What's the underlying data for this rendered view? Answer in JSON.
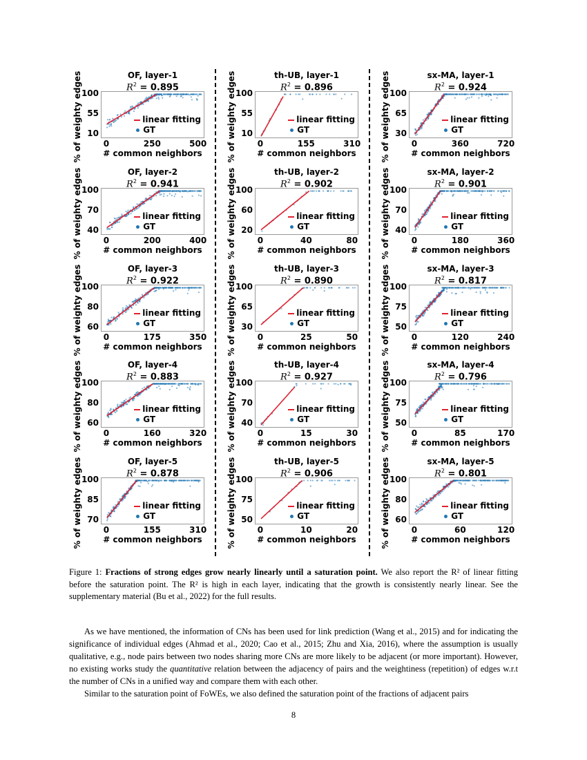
{
  "figure": {
    "ylabel": "% of weighty edges",
    "xlabel": "# common neighbors",
    "legend": {
      "fit": "linear fitting",
      "gt": "GT"
    },
    "r2_prefix": "= ",
    "colors": {
      "fit": "#e0202e",
      "gt": "#1f77b4"
    }
  },
  "chart_data": [
    {
      "type": "scatter",
      "title": "OF, layer-1",
      "r2": "0.895",
      "yticks": [
        10,
        55,
        100
      ],
      "xticks": [
        0,
        250,
        500
      ],
      "fit_line": [
        [
          0,
          33
        ],
        [
          270,
          100
        ]
      ]
    },
    {
      "type": "scatter",
      "title": "th-UB, layer-1",
      "r2": "0.896",
      "yticks": [
        10,
        55,
        100
      ],
      "xticks": [
        0,
        155,
        310
      ],
      "fit_line": [
        [
          0,
          5
        ],
        [
          75,
          95
        ]
      ]
    },
    {
      "type": "scatter",
      "title": "sx-MA, layer-1",
      "r2": "0.924",
      "yticks": [
        30,
        65,
        100
      ],
      "xticks": [
        0,
        360,
        720
      ],
      "fit_line": [
        [
          0,
          30
        ],
        [
          230,
          100
        ]
      ]
    },
    {
      "type": "scatter",
      "title": "OF, layer-2",
      "r2": "0.941",
      "yticks": [
        40,
        70,
        100
      ],
      "xticks": [
        0,
        200,
        400
      ],
      "fit_line": [
        [
          0,
          45
        ],
        [
          230,
          100
        ]
      ]
    },
    {
      "type": "scatter",
      "title": "th-UB, layer-2",
      "r2": "0.902",
      "yticks": [
        20,
        60,
        100
      ],
      "xticks": [
        0,
        40,
        80
      ],
      "fit_line": [
        [
          0,
          22
        ],
        [
          42,
          100
        ]
      ]
    },
    {
      "type": "scatter",
      "title": "sx-MA, layer-2",
      "r2": "0.901",
      "yticks": [
        40,
        70,
        100
      ],
      "xticks": [
        0,
        180,
        360
      ],
      "fit_line": [
        [
          0,
          45
        ],
        [
          100,
          100
        ]
      ]
    },
    {
      "type": "scatter",
      "title": "OF, layer-3",
      "r2": "0.922",
      "yticks": [
        60,
        80,
        100
      ],
      "xticks": [
        0,
        175,
        350
      ],
      "fit_line": [
        [
          0,
          63
        ],
        [
          180,
          100
        ]
      ]
    },
    {
      "type": "scatter",
      "title": "th-UB, layer-3",
      "r2": "0.890",
      "yticks": [
        30,
        65,
        100
      ],
      "xticks": [
        0,
        25,
        50
      ],
      "fit_line": [
        [
          0,
          35
        ],
        [
          23,
          100
        ]
      ]
    },
    {
      "type": "scatter",
      "title": "sx-MA, layer-3",
      "r2": "0.817",
      "yticks": [
        50,
        75,
        100
      ],
      "xticks": [
        0,
        120,
        240
      ],
      "fit_line": [
        [
          0,
          57
        ],
        [
          70,
          95
        ]
      ]
    },
    {
      "type": "scatter",
      "title": "OF, layer-4",
      "r2": "0.883",
      "yticks": [
        60,
        80,
        100
      ],
      "xticks": [
        0,
        160,
        320
      ],
      "fit_line": [
        [
          0,
          68
        ],
        [
          160,
          100
        ]
      ]
    },
    {
      "type": "scatter",
      "title": "th-UB, layer-4",
      "r2": "0.927",
      "yticks": [
        40,
        70,
        100
      ],
      "xticks": [
        0,
        15,
        30
      ],
      "fit_line": [
        [
          0,
          38
        ],
        [
          11,
          95
        ]
      ]
    },
    {
      "type": "scatter",
      "title": "sx-MA, layer-4",
      "r2": "0.796",
      "yticks": [
        50,
        75,
        100
      ],
      "xticks": [
        0,
        85,
        170
      ],
      "fit_line": [
        [
          0,
          62
        ],
        [
          45,
          95
        ]
      ]
    },
    {
      "type": "scatter",
      "title": "OF, layer-5",
      "r2": "0.878",
      "yticks": [
        70,
        85,
        100
      ],
      "xticks": [
        0,
        155,
        310
      ],
      "fit_line": [
        [
          0,
          72
        ],
        [
          100,
          100
        ]
      ]
    },
    {
      "type": "scatter",
      "title": "th-UB, layer-5",
      "r2": "0.906",
      "yticks": [
        50,
        75,
        100
      ],
      "xticks": [
        0,
        10,
        20
      ],
      "fit_line": [
        [
          0,
          52
        ],
        [
          9,
          100
        ]
      ]
    },
    {
      "type": "scatter",
      "title": "sx-MA, layer-5",
      "r2": "0.801",
      "yticks": [
        60,
        80,
        100
      ],
      "xticks": [
        0,
        60,
        120
      ],
      "fit_line": [
        [
          0,
          68
        ],
        [
          50,
          100
        ]
      ]
    }
  ],
  "caption": {
    "label": "Figure 1: ",
    "bold": "Fractions of strong edges grow nearly linearly until a saturation point.",
    "rest": " We also report the R² of linear fitting before the saturation point. The R² is high in each layer, indicating that the growth is consistently nearly linear. See the supplementary material (Bu et al., 2022) for the full results."
  },
  "body": {
    "p1_a": "As we have mentioned, the information of CNs has been used for link prediction  (Wang et al., 2015) and for indicating the significance of individual edges (Ahmad et al., 2020; Cao et al., 2015; Zhu and Xia, 2016), where the assumption is usually qualitative, e.g., node pairs between two nodes sharing more CNs are more likely to be adjacent (or more important). However, no existing works study the ",
    "p1_em": "quantitative",
    "p1_b": " relation between the adjacency of pairs and the weightiness (repetition) of edges w.r.t the number of CNs in a unified way and compare them with each other.",
    "p2": "Similar to the saturation point of FoWEs, we also defined the saturation point of the fractions of adjacent pairs"
  },
  "page_number": "8"
}
